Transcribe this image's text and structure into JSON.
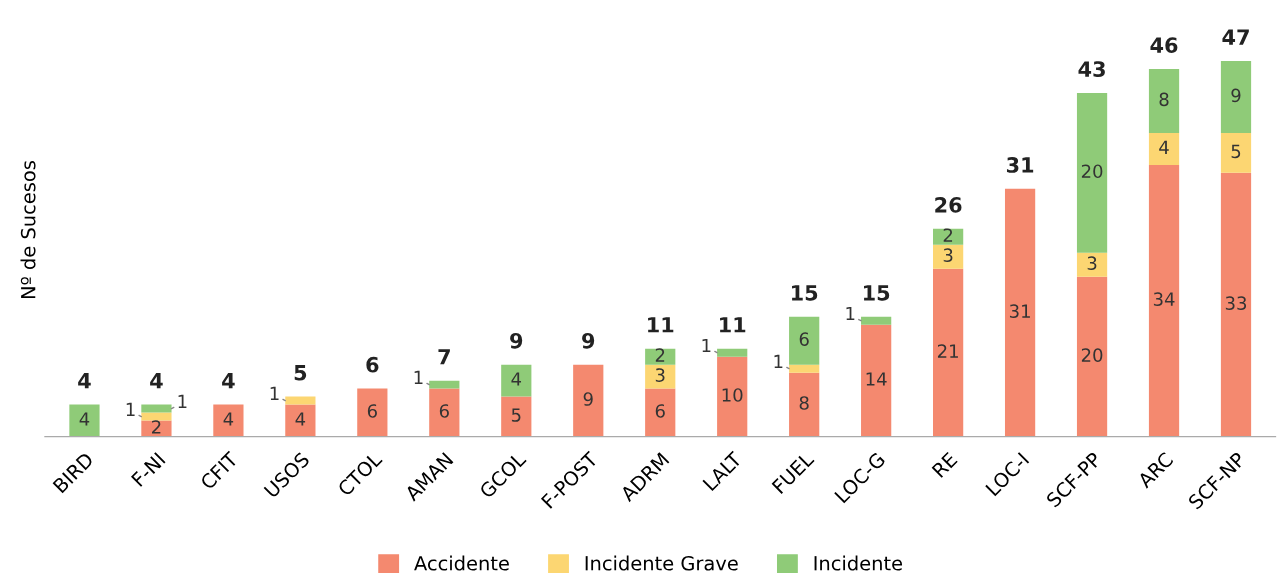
{
  "chart_data": {
    "type": "bar",
    "stacked": true,
    "ylabel": "Nº de Sucesos",
    "categories": [
      "BIRD",
      "F-NI",
      "CFIT",
      "USOS",
      "CTOL",
      "AMAN",
      "GCOL",
      "F-POST",
      "ADRM",
      "LALT",
      "FUEL",
      "LOC-G",
      "RE",
      "LOC-I",
      "SCF-PP",
      "ARC",
      "SCF-NP"
    ],
    "series": [
      {
        "name": "Accidente",
        "color": "#f4896f",
        "values": [
          null,
          2,
          4,
          4,
          6,
          6,
          5,
          9,
          6,
          10,
          8,
          14,
          21,
          31,
          20,
          34,
          33
        ]
      },
      {
        "name": "Incidente Grave",
        "color": "#fcd672",
        "values": [
          null,
          1,
          null,
          1,
          null,
          null,
          null,
          null,
          3,
          null,
          1,
          null,
          3,
          null,
          3,
          4,
          5
        ]
      },
      {
        "name": "Incidente",
        "color": "#8fcb78",
        "values": [
          4,
          1,
          null,
          null,
          null,
          1,
          4,
          null,
          2,
          1,
          6,
          1,
          2,
          null,
          20,
          8,
          9
        ]
      }
    ],
    "totals": [
      "4",
      "4",
      "4",
      "5",
      "6",
      "7",
      "9",
      "9",
      "11",
      "11",
      "15",
      "15",
      "26",
      "31",
      "43",
      "46",
      "47"
    ],
    "data_labels": true,
    "tick_labels": "x",
    "grid": false,
    "legend": "bottom"
  }
}
